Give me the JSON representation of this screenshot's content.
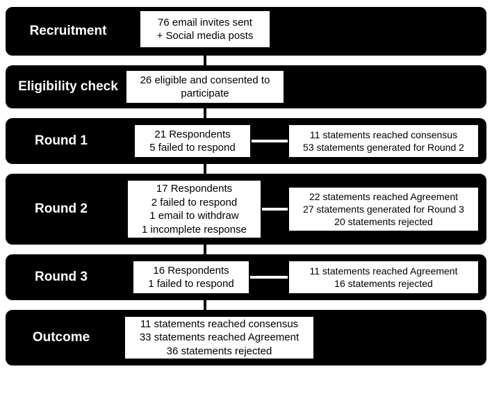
{
  "type": "flowchart",
  "background_color": "#ffffff",
  "row_color": "#000000",
  "box_bg": "#ffffff",
  "box_border": "#000000",
  "label_color": "#ffffff",
  "text_color": "#000000",
  "label_fontsize": 19,
  "box_fontsize": 15,
  "stages": {
    "recruitment": {
      "label": "Recruitment",
      "center": "76 email invites sent\n+ Social media posts"
    },
    "eligibility": {
      "label": "Eligibility check",
      "center": "26 eligible and consented to\nparticipate"
    },
    "round1": {
      "label": "Round 1",
      "center": "21 Respondents\n5 failed to respond",
      "right": "11 statements reached consensus\n53 statements generated for Round 2"
    },
    "round2": {
      "label": "Round 2",
      "center": "17 Respondents\n2 failed to respond\n1 email to withdraw\n1 incomplete response",
      "right": "22 statements reached Agreement\n27 statements generated for Round 3\n20 statements rejected"
    },
    "round3": {
      "label": "Round 3",
      "center": "16 Respondents\n1 failed to respond",
      "right": "11 statements reached Agreement\n16 statements rejected"
    },
    "outcome": {
      "label": "Outcome",
      "center": "11 statements reached consensus\n33 statements reached Agreement\n36 statements rejected"
    }
  }
}
